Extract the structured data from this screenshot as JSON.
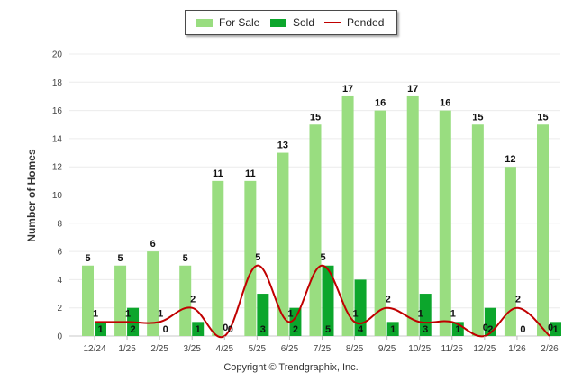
{
  "chart_data": {
    "type": "bar",
    "categories": [
      "12/24",
      "1/25",
      "2/25",
      "3/25",
      "4/25",
      "5/25",
      "6/25",
      "7/25",
      "8/25",
      "9/25",
      "10/25",
      "11/25",
      "12/25",
      "1/26",
      "2/26"
    ],
    "series": [
      {
        "name": "For Sale",
        "type": "bar",
        "color": "#99dd80",
        "values": [
          5,
          5,
          6,
          5,
          11,
          11,
          13,
          15,
          17,
          16,
          17,
          16,
          15,
          12,
          15
        ]
      },
      {
        "name": "Sold",
        "type": "bar",
        "color": "#0ca62c",
        "values": [
          1,
          2,
          0,
          1,
          0,
          3,
          2,
          5,
          4,
          1,
          3,
          1,
          2,
          0,
          1
        ]
      },
      {
        "name": "Pended",
        "type": "line",
        "color": "#c00000",
        "values": [
          1,
          1,
          1,
          2,
          0,
          5,
          1,
          5,
          1,
          2,
          1,
          1,
          0,
          2,
          0
        ]
      }
    ],
    "xlabel": "",
    "ylabel": "Number of Homes",
    "ylim": [
      0,
      20
    ],
    "yticks": [
      0,
      2,
      4,
      6,
      8,
      10,
      12,
      14,
      16,
      18,
      20
    ],
    "grid": true,
    "legend": "top-center"
  },
  "copyright": "Copyright © Trendgraphix, Inc."
}
